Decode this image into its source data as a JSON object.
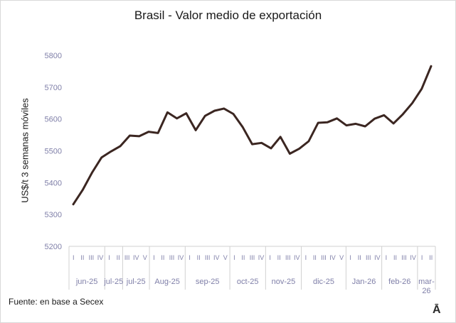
{
  "footer": {
    "source": "Fuente: en base a Secex",
    "logo_text": "Ā"
  },
  "chart_data": {
    "type": "line",
    "title": "Brasil - Valor medio de exportación",
    "xlabel": "",
    "ylabel": "US$/t 3 semanas móviles",
    "ylim": [
      5200,
      5800
    ],
    "yticks": [
      5200,
      5300,
      5400,
      5500,
      5600,
      5700,
      5800
    ],
    "grid": false,
    "line_color": "#3b2621",
    "axis_text_color": "#7f7fa8",
    "week_labels": [
      "I",
      "II",
      "III",
      "IV",
      "I",
      "II",
      "III",
      "IV",
      "V",
      "I",
      "II",
      "III",
      "IV",
      "I",
      "II",
      "III",
      "IV",
      "V",
      "I",
      "II",
      "III",
      "IV",
      "I",
      "II",
      "III",
      "IV",
      "I",
      "II",
      "III",
      "IV",
      "V",
      "I",
      "II",
      "III",
      "IV",
      "I",
      "II",
      "III",
      "IV",
      "I",
      "II"
    ],
    "months": [
      {
        "label": "jun-25",
        "start": 0,
        "count": 4
      },
      {
        "label": "jul-25",
        "start": 4,
        "count": 2
      },
      {
        "label": "jul-25",
        "start": 6,
        "count": 3
      },
      {
        "label": "Aug-25",
        "start": 9,
        "count": 4
      },
      {
        "label": "sep-25",
        "start": 13,
        "count": 5
      },
      {
        "label": "oct-25",
        "start": 18,
        "count": 4
      },
      {
        "label": "nov-25",
        "start": 22,
        "count": 4
      },
      {
        "label": "dic-25",
        "start": 26,
        "count": 5
      },
      {
        "label": "Jan-26",
        "start": 31,
        "count": 4
      },
      {
        "label": "feb-26",
        "start": 35,
        "count": 4
      },
      {
        "label": "mar-26",
        "start": 39,
        "count": 2
      }
    ],
    "series": [
      {
        "name": "Valor medio de exportación",
        "values": [
          5332,
          5377,
          5432,
          5479,
          5498,
          5515,
          5548,
          5546,
          5560,
          5556,
          5621,
          5602,
          5618,
          5565,
          5610,
          5626,
          5633,
          5616,
          5574,
          5521,
          5525,
          5508,
          5544,
          5491,
          5507,
          5530,
          5588,
          5590,
          5602,
          5580,
          5585,
          5577,
          5601,
          5612,
          5586,
          5615,
          5650,
          5695,
          5766
        ]
      }
    ]
  }
}
